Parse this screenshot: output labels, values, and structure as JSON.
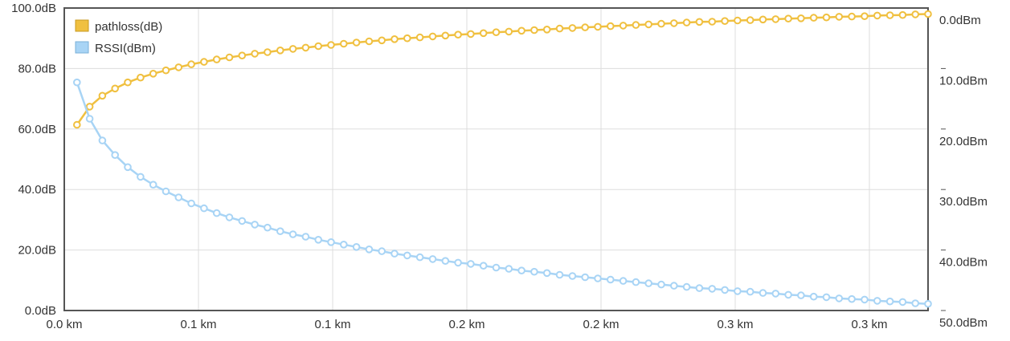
{
  "chart_data": {
    "type": "line",
    "x_tick_labels": [
      "0.0 km",
      "0.1 km",
      "0.1 km",
      "0.2 km",
      "0.2 km",
      "0.3 km",
      "0.3 km"
    ],
    "y_left_tick_labels": [
      "0.0dB",
      "20.0dB",
      "40.0dB",
      "60.0dB",
      "80.0dB",
      "100.0dB"
    ],
    "y_right_tick_labels": [
      "0.0dBm",
      "10.0dBm",
      "20.0dBm",
      "30.0dBm",
      "40.0dBm",
      "50.0dBm"
    ],
    "x_range_km": [
      0,
      0.34
    ],
    "y_left_range": [
      0,
      100
    ],
    "y_right_range": [
      0,
      -50
    ],
    "grid": true,
    "legend_position": "top-left",
    "x_km": [
      0.005,
      0.01,
      0.015,
      0.02,
      0.025,
      0.03,
      0.035,
      0.04,
      0.045,
      0.05,
      0.055,
      0.06,
      0.065,
      0.07,
      0.075,
      0.08,
      0.085,
      0.09,
      0.095,
      0.1,
      0.105,
      0.11,
      0.115,
      0.12,
      0.125,
      0.13,
      0.135,
      0.14,
      0.145,
      0.15,
      0.155,
      0.16,
      0.165,
      0.17,
      0.175,
      0.18,
      0.185,
      0.19,
      0.195,
      0.2,
      0.205,
      0.21,
      0.215,
      0.22,
      0.225,
      0.23,
      0.235,
      0.24,
      0.245,
      0.25,
      0.255,
      0.26,
      0.265,
      0.27,
      0.275,
      0.28,
      0.285,
      0.29,
      0.295,
      0.3,
      0.305,
      0.31,
      0.315,
      0.32,
      0.325,
      0.33,
      0.335,
      0.34
    ],
    "series": [
      {
        "name": "pathloss(dB)",
        "axis": "left",
        "color": "#f0c040",
        "values": [
          61.4,
          67.4,
          71.0,
          73.4,
          75.4,
          77.0,
          78.3,
          79.4,
          80.4,
          81.4,
          82.2,
          83.0,
          83.7,
          84.3,
          84.9,
          85.4,
          86.0,
          86.5,
          86.9,
          87.4,
          87.8,
          88.2,
          88.6,
          89.0,
          89.3,
          89.7,
          90.0,
          90.3,
          90.6,
          90.9,
          91.2,
          91.4,
          91.7,
          92.0,
          92.2,
          92.5,
          92.7,
          92.9,
          93.2,
          93.4,
          93.6,
          93.8,
          94.0,
          94.2,
          94.4,
          94.6,
          94.8,
          95.0,
          95.2,
          95.4,
          95.5,
          95.7,
          95.9,
          96.0,
          96.2,
          96.3,
          96.5,
          96.6,
          96.8,
          96.9,
          97.1,
          97.2,
          97.3,
          97.5,
          97.6,
          97.7,
          97.9,
          98.0
        ]
      },
      {
        "name": "RSSI(dBm)",
        "axis": "right",
        "color": "#a8d4f5",
        "values": [
          -12.3,
          -18.3,
          -21.9,
          -24.3,
          -26.3,
          -27.9,
          -29.2,
          -30.3,
          -31.3,
          -32.3,
          -33.1,
          -33.9,
          -34.6,
          -35.2,
          -35.8,
          -36.3,
          -36.9,
          -37.4,
          -37.8,
          -38.3,
          -38.7,
          -39.1,
          -39.5,
          -39.9,
          -40.2,
          -40.6,
          -40.9,
          -41.2,
          -41.5,
          -41.8,
          -42.1,
          -42.3,
          -42.6,
          -42.9,
          -43.1,
          -43.4,
          -43.6,
          -43.8,
          -44.1,
          -44.3,
          -44.5,
          -44.7,
          -44.9,
          -45.1,
          -45.3,
          -45.5,
          -45.7,
          -45.9,
          -46.1,
          -46.3,
          -46.4,
          -46.6,
          -46.8,
          -46.9,
          -47.1,
          -47.2,
          -47.4,
          -47.5,
          -47.7,
          -47.8,
          -48.0,
          -48.1,
          -48.2,
          -48.4,
          -48.5,
          -48.6,
          -48.8,
          -48.9
        ]
      }
    ]
  }
}
